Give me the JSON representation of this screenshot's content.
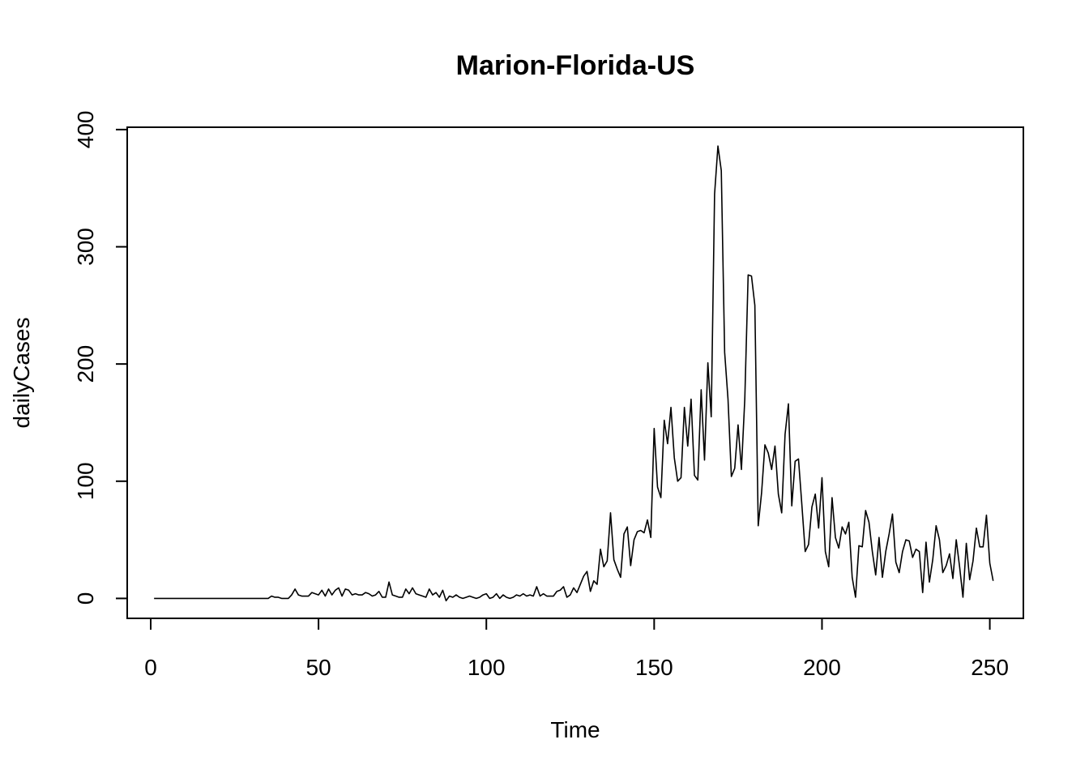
{
  "chart_data": {
    "type": "line",
    "title": "Marion-Florida-US",
    "xlabel": "Time",
    "ylabel": "dailyCases",
    "xlim": [
      -7,
      260
    ],
    "ylim": [
      -17,
      402
    ],
    "x_ticks": [
      0,
      50,
      100,
      150,
      200,
      250
    ],
    "y_ticks": [
      0,
      100,
      200,
      300,
      400
    ],
    "grid": false,
    "legend": "none",
    "line_color": "#000000",
    "x_start": 1,
    "series": [
      {
        "values": [
          0,
          0,
          0,
          0,
          0,
          0,
          0,
          0,
          0,
          0,
          0,
          0,
          0,
          0,
          0,
          0,
          0,
          0,
          0,
          0,
          0,
          0,
          0,
          0,
          0,
          0,
          0,
          0,
          0,
          0,
          0,
          0,
          0,
          0,
          0,
          2,
          1,
          1,
          0,
          0,
          0,
          3,
          8,
          3,
          2,
          2,
          2,
          5,
          4,
          3,
          7,
          2,
          8,
          3,
          7,
          9,
          2,
          8,
          7,
          3,
          4,
          3,
          3,
          5,
          4,
          2,
          3,
          6,
          1,
          1,
          14,
          3,
          2,
          1,
          1,
          8,
          4,
          9,
          4,
          3,
          2,
          1,
          8,
          3,
          5,
          1,
          7,
          -2,
          2,
          1,
          3,
          1,
          0,
          1,
          2,
          1,
          0,
          1,
          3,
          4,
          0,
          1,
          4,
          0,
          3,
          1,
          0,
          1,
          3,
          2,
          4,
          2,
          3,
          2,
          10,
          2,
          4,
          2,
          2,
          2,
          6,
          7,
          10,
          1,
          3,
          9,
          5,
          12,
          19,
          23,
          6,
          15,
          12,
          42,
          27,
          32,
          73,
          33,
          25,
          18,
          55,
          61,
          28,
          50,
          57,
          58,
          56,
          67,
          52,
          145,
          95,
          86,
          152,
          132,
          163,
          120,
          100,
          103,
          163,
          130,
          170,
          105,
          101,
          178,
          118,
          201,
          155,
          345,
          386,
          365,
          210,
          170,
          104,
          111,
          148,
          110,
          170,
          276,
          275,
          250,
          62,
          90,
          131,
          124,
          110,
          130,
          89,
          73,
          140,
          166,
          79,
          117,
          119,
          80,
          40,
          46,
          78,
          89,
          60,
          103,
          40,
          27,
          86,
          52,
          43,
          61,
          55,
          65,
          18,
          1,
          45,
          44,
          75,
          65,
          40,
          20,
          52,
          18,
          40,
          55,
          72,
          31,
          22,
          40,
          50,
          49,
          35,
          42,
          40,
          5,
          48,
          14,
          33,
          62,
          50,
          22,
          28,
          38,
          17,
          50,
          27,
          1,
          47,
          16,
          32,
          60,
          44,
          44,
          71,
          30,
          15
        ]
      }
    ]
  }
}
